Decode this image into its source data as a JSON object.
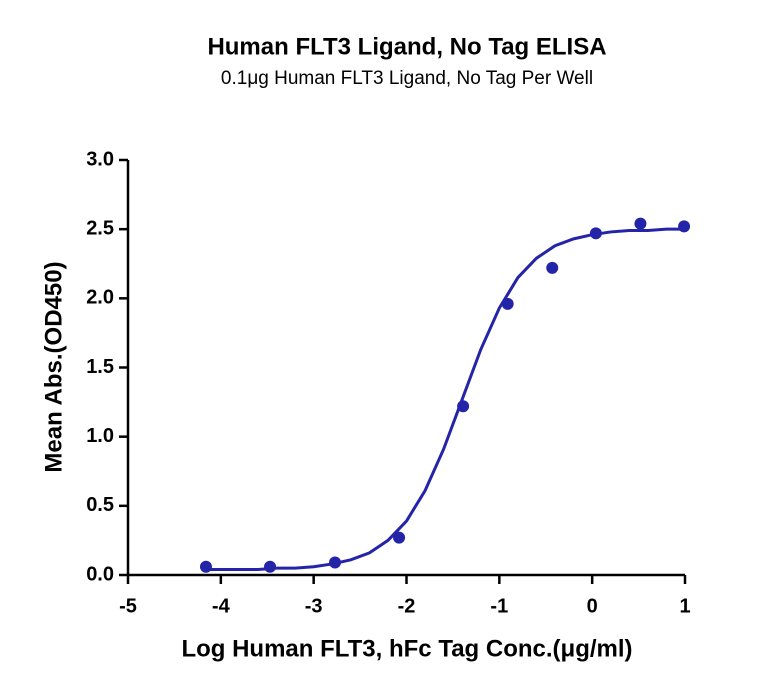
{
  "chart_data": {
    "type": "scatter",
    "title": "Human FLT3 Ligand, No Tag ELISA",
    "subtitle": "0.1μg Human FLT3 Ligand, No Tag Per Well",
    "x_label": "Log Human FLT3, hFc Tag Conc.(μg/ml)",
    "y_label": "Mean Abs.(OD450)",
    "xlim": [
      -5,
      1
    ],
    "xticks": [
      -5,
      -4,
      -3,
      -2,
      -1,
      0,
      1
    ],
    "ylim": [
      0,
      3
    ],
    "yticks": [
      {
        "value": 0,
        "label": "0.0"
      },
      0.5,
      {
        "value": 1,
        "label": "1.0"
      },
      1.5,
      {
        "value": 2,
        "label": "2.0"
      },
      2.5,
      {
        "value": 3,
        "label": "3.0"
      }
    ],
    "series": [
      {
        "mode": "markers",
        "color": "#2424a8",
        "x": [
          -4.16,
          -3.47,
          -2.77,
          -2.08,
          -1.39,
          -0.91,
          -0.43,
          0.04,
          0.52,
          0.99
        ],
        "values": [
          0.06,
          0.06,
          0.09,
          0.27,
          1.22,
          1.96,
          2.22,
          2.47,
          2.54,
          2.52
        ]
      },
      {
        "mode": "line",
        "color": "#2424a8",
        "x": [
          -4.2,
          -4.0,
          -3.8,
          -3.6,
          -3.4,
          -3.2,
          -3.0,
          -2.8,
          -2.6,
          -2.4,
          -2.2,
          -2.0,
          -1.8,
          -1.6,
          -1.4,
          -1.2,
          -1.0,
          -0.8,
          -0.6,
          -0.4,
          -0.2,
          0.0,
          0.2,
          0.4,
          0.6,
          0.8,
          1.0
        ],
        "values": [
          0.04,
          0.04,
          0.04,
          0.04,
          0.05,
          0.05,
          0.06,
          0.08,
          0.11,
          0.16,
          0.25,
          0.39,
          0.61,
          0.91,
          1.27,
          1.63,
          1.93,
          2.15,
          2.29,
          2.38,
          2.43,
          2.46,
          2.48,
          2.49,
          2.49,
          2.5,
          2.5
        ]
      }
    ]
  }
}
